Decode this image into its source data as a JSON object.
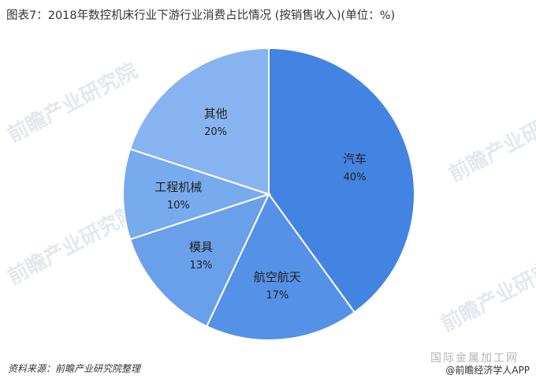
{
  "title": "图表7：2018年数控机床行业下游行业消费占比情况 (按销售收入)(单位：%)",
  "source": "资料来源：前瞻产业研究院整理",
  "watermark_text": "前瞻产业研究院",
  "app_badge": "@前瞻经济学人APP",
  "site_mark": "国际金属加工网",
  "colors": {
    "dark_blue": "#4384e3",
    "mid_blue": "#5591e7",
    "light_blue": "#6a9fea",
    "lighter_blue": "#78aaee",
    "lightest_blue": "#87b4f0"
  },
  "chart_data": {
    "type": "pie",
    "title": "图表7：2018年数控机床行业下游行业消费占比情况 (按销售收入)(单位：%)",
    "slices": [
      {
        "label": "汽车",
        "value": 40,
        "display": "40%",
        "color": "#4384e3"
      },
      {
        "label": "航空航天",
        "value": 17,
        "display": "17%",
        "color": "#5591e7"
      },
      {
        "label": "模具",
        "value": 13,
        "display": "13%",
        "color": "#6a9fea"
      },
      {
        "label": "工程机械",
        "value": 10,
        "display": "10%",
        "color": "#78aaee"
      },
      {
        "label": "其他",
        "value": 20,
        "display": "20%",
        "color": "#87b4f0"
      }
    ]
  }
}
